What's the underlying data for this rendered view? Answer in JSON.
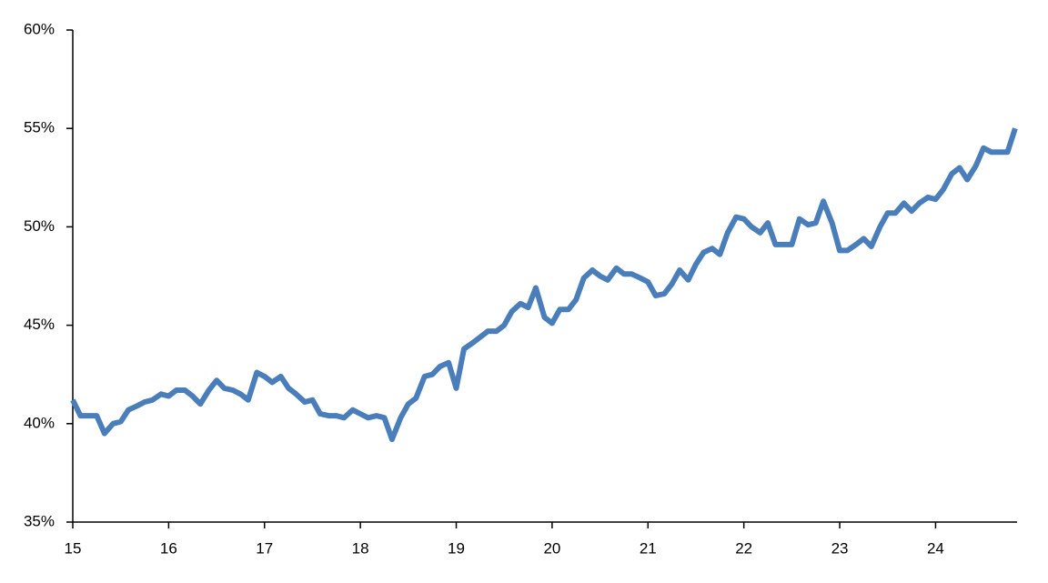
{
  "chart_data": {
    "type": "line",
    "x": [
      15,
      15.08,
      15.17,
      15.25,
      15.33,
      15.42,
      15.5,
      15.58,
      15.67,
      15.75,
      15.83,
      15.92,
      16,
      16.08,
      16.17,
      16.25,
      16.33,
      16.42,
      16.5,
      16.58,
      16.67,
      16.75,
      16.83,
      16.92,
      17,
      17.08,
      17.17,
      17.25,
      17.33,
      17.42,
      17.5,
      17.58,
      17.67,
      17.75,
      17.83,
      17.92,
      18,
      18.08,
      18.17,
      18.25,
      18.33,
      18.42,
      18.5,
      18.58,
      18.67,
      18.75,
      18.83,
      18.92,
      19,
      19.08,
      19.17,
      19.25,
      19.33,
      19.42,
      19.5,
      19.58,
      19.67,
      19.75,
      19.83,
      19.92,
      20,
      20.08,
      20.17,
      20.25,
      20.33,
      20.42,
      20.5,
      20.58,
      20.67,
      20.75,
      20.83,
      20.92,
      21,
      21.08,
      21.17,
      21.25,
      21.33,
      21.42,
      21.5,
      21.58,
      21.67,
      21.75,
      21.83,
      21.92,
      22,
      22.08,
      22.17,
      22.25,
      22.33,
      22.42,
      22.5,
      22.58,
      22.67,
      22.75,
      22.83,
      22.92,
      23,
      23.08,
      23.17,
      23.25,
      23.33,
      23.42,
      23.5,
      23.58,
      23.67,
      23.75,
      23.83,
      23.92,
      24,
      24.08,
      24.17,
      24.25,
      24.33,
      24.42,
      24.5,
      24.58,
      24.67,
      24.75,
      24.83
    ],
    "series": [
      {
        "color": "#4a7ebb",
        "values": [
          41.2,
          40.4,
          40.4,
          40.4,
          39.5,
          40.0,
          40.1,
          40.7,
          40.9,
          41.1,
          41.2,
          41.5,
          41.4,
          41.7,
          41.7,
          41.4,
          41.0,
          41.7,
          42.2,
          41.8,
          41.7,
          41.5,
          41.2,
          42.6,
          42.4,
          42.1,
          42.4,
          41.8,
          41.5,
          41.1,
          41.2,
          40.5,
          40.4,
          40.4,
          40.3,
          40.7,
          40.5,
          40.3,
          40.4,
          40.3,
          39.2,
          40.3,
          41.0,
          41.3,
          42.4,
          42.5,
          42.9,
          43.1,
          41.8,
          43.8,
          44.1,
          44.4,
          44.7,
          44.7,
          45.0,
          45.7,
          46.1,
          45.9,
          46.9,
          45.4,
          45.1,
          45.8,
          45.8,
          46.3,
          47.4,
          47.8,
          47.5,
          47.3,
          47.9,
          47.6,
          47.6,
          47.4,
          47.2,
          46.5,
          46.6,
          47.1,
          47.8,
          47.3,
          48.1,
          48.7,
          48.9,
          48.6,
          49.7,
          50.5,
          50.4,
          50.0,
          49.7,
          50.2,
          49.1,
          49.1,
          49.1,
          50.4,
          50.1,
          50.2,
          51.3,
          50.2,
          48.8,
          48.8,
          49.1,
          49.4,
          49.0,
          50.0,
          50.7,
          50.7,
          51.2,
          50.8,
          51.2,
          51.5,
          51.4,
          51.9,
          52.7,
          53.0,
          52.4,
          53.1,
          54.0,
          53.8,
          53.8,
          53.8,
          55.0
        ]
      }
    ],
    "xlim": [
      15,
      24.85
    ],
    "xticks": [
      15,
      16,
      17,
      18,
      19,
      20,
      21,
      22,
      23,
      24
    ],
    "ylim": [
      35,
      60
    ],
    "yticks": [
      {
        "value": 35,
        "label": "35%"
      },
      {
        "value": 40,
        "label": "40%"
      },
      {
        "value": 45,
        "label": "45%"
      },
      {
        "value": 50,
        "label": "50%"
      },
      {
        "value": 55,
        "label": "55%"
      },
      {
        "value": 60,
        "label": "60%"
      }
    ],
    "grid": false
  }
}
